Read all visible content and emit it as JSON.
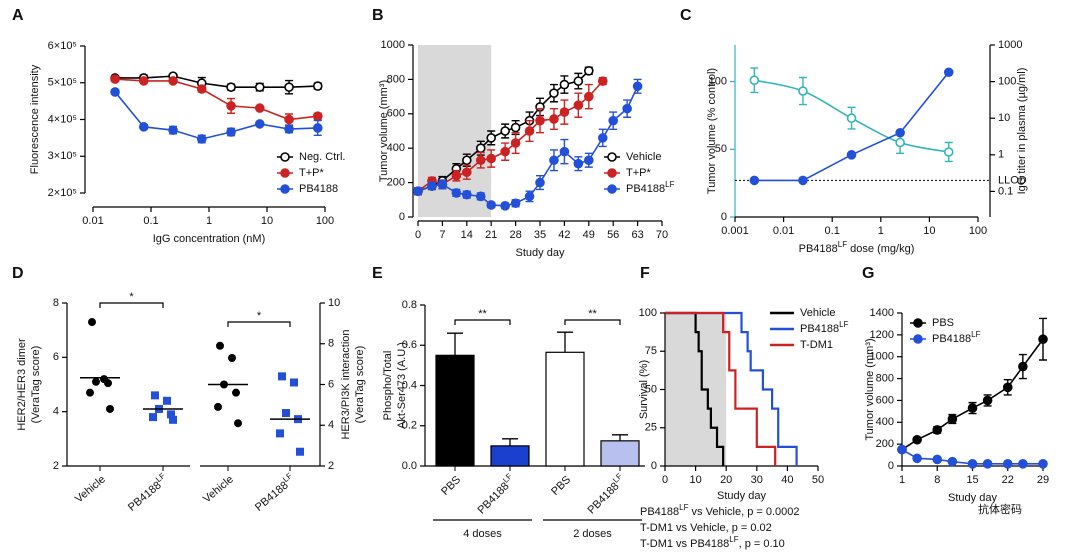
{
  "chart_data": [
    {
      "panel": "A",
      "type": "line",
      "xscale": "log",
      "x": [
        0.024,
        0.075,
        0.24,
        0.75,
        2.4,
        7.5,
        24,
        75
      ],
      "xlim": [
        0.01,
        100
      ],
      "xticks": [
        0.01,
        0.1,
        1,
        10,
        100
      ],
      "ylim": [
        200000,
        600000
      ],
      "yticks": [
        {
          "value": 200000,
          "label": "2×10⁵"
        },
        {
          "value": 300000,
          "label": "3×10⁵"
        },
        {
          "value": 400000,
          "label": "4×10⁵"
        },
        {
          "value": 500000,
          "label": "5×10⁵"
        },
        {
          "value": 600000,
          "label": "6×10⁵"
        }
      ],
      "xlabel": "IgG concentration (nM)",
      "ylabel": "Fluorescence intensity",
      "legend": "lower right",
      "series": [
        {
          "name": "Neg. Ctrl.",
          "color": "#000000",
          "marker": "open",
          "values": [
            513000,
            513000,
            518000,
            499000,
            488000,
            488000,
            488000,
            491000
          ],
          "errors": [
            5000,
            8000,
            5000,
            15000,
            8000,
            10000,
            18000,
            8000
          ]
        },
        {
          "name": "T+P*",
          "color": "#cc2222",
          "marker": "filled",
          "values": [
            510000,
            505000,
            505000,
            483000,
            437000,
            431000,
            400000,
            409000
          ],
          "errors": [
            5000,
            5000,
            5000,
            8000,
            20000,
            5000,
            15000,
            8000
          ]
        },
        {
          "name": "PB4188",
          "color": "#2350d8",
          "marker": "filled",
          "values": [
            475000,
            380000,
            371000,
            347000,
            366000,
            388000,
            374000,
            377000
          ],
          "errors": [
            5000,
            5000,
            10000,
            10000,
            10000,
            5000,
            10000,
            20000
          ]
        }
      ]
    },
    {
      "panel": "B",
      "type": "line",
      "shade": [
        0,
        21
      ],
      "xlim": [
        0,
        70
      ],
      "xticks": [
        0,
        7,
        14,
        21,
        28,
        35,
        42,
        49,
        56,
        63,
        70
      ],
      "ylim": [
        0,
        1000
      ],
      "yticks": [
        0,
        200,
        400,
        600,
        800,
        1000
      ],
      "xlabel": "Study day",
      "ylabel": "Tumor volume (mm³)",
      "legend": "lower right",
      "series": [
        {
          "name": "Vehicle",
          "color": "#000000",
          "marker": "open",
          "x": [
            0,
            4,
            7,
            11,
            14,
            18,
            21,
            25,
            28,
            32,
            35,
            39,
            42,
            46,
            49
          ],
          "values": [
            150,
            180,
            210,
            280,
            330,
            400,
            460,
            500,
            520,
            560,
            640,
            720,
            770,
            790,
            850
          ],
          "errors": [
            20,
            20,
            25,
            30,
            35,
            40,
            40,
            40,
            40,
            50,
            50,
            50,
            50,
            45,
            20
          ]
        },
        {
          "name": "T+P*",
          "color": "#cc2222",
          "marker": "filled",
          "x": [
            0,
            4,
            7,
            11,
            14,
            18,
            21,
            25,
            28,
            32,
            35,
            39,
            42,
            46,
            49,
            53
          ],
          "values": [
            150,
            210,
            190,
            240,
            260,
            330,
            340,
            380,
            430,
            500,
            560,
            570,
            610,
            650,
            700,
            790
          ],
          "errors": [
            20,
            20,
            25,
            30,
            40,
            45,
            50,
            50,
            60,
            60,
            70,
            60,
            70,
            70,
            70,
            20
          ]
        },
        {
          "name": "PB4188",
          "name_sup": "LF",
          "color": "#2350d8",
          "marker": "filled",
          "x": [
            0,
            4,
            7,
            11,
            14,
            18,
            21,
            25,
            28,
            32,
            35,
            39,
            42,
            46,
            49,
            53,
            56,
            60,
            63
          ],
          "values": [
            150,
            180,
            190,
            140,
            130,
            120,
            70,
            65,
            80,
            120,
            200,
            330,
            380,
            310,
            330,
            460,
            560,
            630,
            760
          ],
          "errors": [
            20,
            20,
            25,
            20,
            20,
            20,
            15,
            15,
            20,
            30,
            40,
            60,
            70,
            40,
            40,
            50,
            50,
            50,
            40
          ]
        }
      ]
    },
    {
      "panel": "C",
      "type": "line",
      "xscale": "log",
      "y2scale": "log",
      "x": [
        0.0025,
        0.025,
        0.25,
        2.5,
        25
      ],
      "xlim": [
        0.001,
        100
      ],
      "xticks": [
        0.001,
        0.01,
        0.1,
        1,
        10,
        100
      ],
      "ylim": [
        0,
        127
      ],
      "yticks": [
        0,
        50,
        100
      ],
      "y2lim": [
        0.02,
        1000
      ],
      "y2ticks": [
        0.1,
        1,
        10,
        100,
        1000
      ],
      "xlabel": {
        "pre": "PB4188",
        "sup": "LF",
        "post": " dose (mg/kg)"
      },
      "ylabel": "Tumor volume (% control)",
      "y2label": "IgG titer in plasma (µg/ml)",
      "reference_line": {
        "value": 0.2,
        "label": "LLOD",
        "axis": "y2"
      },
      "series": [
        {
          "color": "#33b5b8",
          "marker": "open",
          "curve": "smooth",
          "values": [
            101,
            93,
            73,
            55,
            48
          ],
          "errors": [
            9,
            10,
            8,
            8,
            7
          ]
        },
        {
          "color": "#2350d8",
          "marker": "filled",
          "axis": "y2",
          "values": [
            0.2,
            0.2,
            1,
            4,
            180
          ]
        }
      ]
    },
    {
      "panel": "D",
      "type": "dot",
      "ylim": [
        2,
        8
      ],
      "yticks": [
        2,
        4,
        6,
        8
      ],
      "y2lim": [
        2,
        10
      ],
      "y2ticks": [
        2,
        4,
        6,
        8,
        10
      ],
      "ylabel": [
        "HER2/HER3 dimer",
        "(VeraTag score)"
      ],
      "y2label": [
        "HER3/PI3K interaction",
        "(VeraTag score)"
      ],
      "groups": [
        {
          "category": "Vehicle",
          "color": "#000000",
          "marker": "circle",
          "values": [
            7.3,
            5.2,
            5.1,
            5.05,
            4.7,
            4.1
          ],
          "mean": 5.25
        },
        {
          "category": "PB4188",
          "category_sup": "LF",
          "color": "#2350d8",
          "marker": "square",
          "values": [
            4.6,
            4.4,
            4.1,
            3.9,
            3.8,
            3.7
          ],
          "mean": 4.1
        },
        {
          "category": "Vehicle",
          "color": "#000000",
          "marker": "circle",
          "axis": "y2",
          "values": [
            7.9,
            7.3,
            6.0,
            5.6,
            4.9,
            4.1
          ],
          "mean": 6.0
        },
        {
          "category": "PB4188",
          "category_sup": "LF",
          "color": "#2350d8",
          "marker": "square",
          "axis": "y2",
          "values": [
            6.4,
            6.1,
            4.6,
            4.3,
            3.6,
            2.7
          ],
          "mean": 4.3
        }
      ],
      "significance": [
        "*",
        "*"
      ]
    },
    {
      "panel": "E",
      "type": "bar",
      "categories": [
        "PBS",
        "PB4188",
        "PBS",
        "PB4188"
      ],
      "category_sup": [
        null,
        "LF",
        null,
        "LF"
      ],
      "values": [
        0.55,
        0.1,
        0.565,
        0.125
      ],
      "errors": [
        0.11,
        0.035,
        0.1,
        0.03
      ],
      "colors": [
        "#000000",
        "#1b3fcf",
        "#ffffff",
        "#b8c0f0"
      ],
      "ylim": [
        0,
        0.8
      ],
      "yticks": [
        {
          "value": 0,
          "label": "0.0"
        },
        {
          "value": 0.2,
          "label": "0.2"
        },
        {
          "value": 0.4,
          "label": "0.4"
        },
        {
          "value": 0.6,
          "label": "0.6"
        },
        {
          "value": 0.8,
          "label": "0.8"
        }
      ],
      "ylabel": [
        "Phospho/Total",
        "Akt-Ser473 (A.U.)"
      ],
      "group_labels": [
        "4 doses",
        "2 doses"
      ],
      "significance": [
        "**",
        "**"
      ]
    },
    {
      "panel": "F",
      "type": "step",
      "shade": [
        0,
        20
      ],
      "xlim": [
        0,
        50
      ],
      "xticks": [
        0,
        10,
        20,
        30,
        40,
        50
      ],
      "ylim": [
        0,
        100
      ],
      "yticks": [
        0,
        25,
        50,
        75,
        100
      ],
      "xlabel": "Study day",
      "ylabel": "Survival (%)",
      "legend": "upper right",
      "series": [
        {
          "name": "Vehicle",
          "color": "#000000",
          "x": [
            0,
            10,
            11,
            12,
            14,
            15,
            17,
            19
          ],
          "values": [
            100,
            87.5,
            75,
            50,
            37.5,
            25,
            12.5,
            0
          ]
        },
        {
          "name": "PB4188",
          "name_sup": "LF",
          "color": "#2350d8",
          "x": [
            0,
            25,
            27,
            28,
            32,
            35,
            37,
            43
          ],
          "values": [
            100,
            87.5,
            75,
            62.5,
            50,
            37.5,
            12.5,
            0
          ]
        },
        {
          "name": "T-DM1",
          "color": "#cc2222",
          "x": [
            0,
            19,
            21,
            23,
            30,
            36
          ],
          "values": [
            100,
            87.5,
            62.5,
            37.5,
            12.5,
            0
          ]
        }
      ],
      "annotations": [
        {
          "pre": "PB4188",
          "sup": "LF",
          "post": " vs Vehicle, p = 0.0002"
        },
        {
          "pre": "T-DM1 vs Vehicle, p = 0.02"
        },
        {
          "pre": "T-DM1 vs PB4188",
          "sup": "LF",
          "post": ", p = 0.10"
        }
      ]
    },
    {
      "panel": "G",
      "type": "line",
      "x": [
        1,
        4,
        8,
        11,
        15,
        18,
        22,
        25,
        29
      ],
      "xlim": [
        1,
        29
      ],
      "xticks": [
        1,
        8,
        15,
        22,
        29
      ],
      "ylim": [
        0,
        1400
      ],
      "yticks": [
        0,
        200,
        400,
        600,
        800,
        1000,
        1200,
        1400
      ],
      "xlabel": "Study day",
      "ylabel": "Tumor volume (mm³)",
      "legend": "upper left",
      "series": [
        {
          "name": "PBS",
          "color": "#000000",
          "marker": "filled",
          "values": [
            150,
            240,
            330,
            430,
            530,
            600,
            720,
            910,
            1160
          ],
          "errors": [
            20,
            20,
            30,
            40,
            50,
            50,
            70,
            110,
            190
          ]
        },
        {
          "name": "PB4188",
          "name_sup": "LF",
          "color": "#2350d8",
          "marker": "filled",
          "values": [
            150,
            70,
            60,
            40,
            20,
            20,
            20,
            20,
            20
          ],
          "errors": [
            20,
            10,
            10,
            5,
            5,
            5,
            5,
            5,
            5
          ]
        }
      ]
    }
  ],
  "watermark": "抗体密码"
}
